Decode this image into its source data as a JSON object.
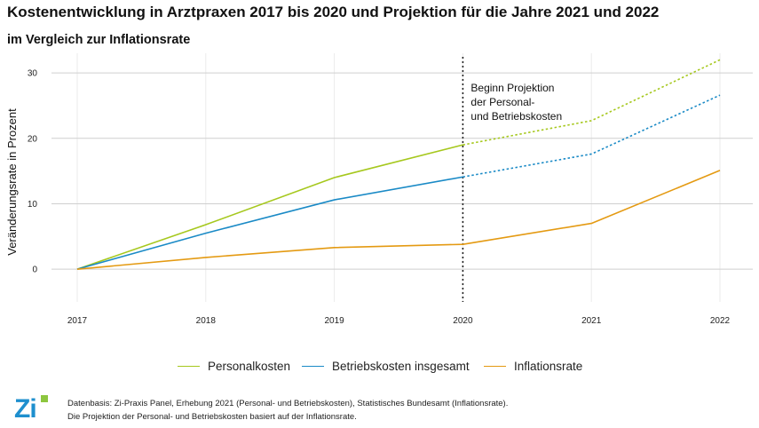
{
  "title": "Kostenentwicklung in Arztpraxen 2017 bis 2020 und Projektion für die Jahre 2021 und 2022",
  "subtitle": "im Vergleich zur Inflationsrate",
  "chart_data": {
    "type": "line",
    "x": [
      "2017",
      "2018",
      "2019",
      "2020",
      "2021",
      "2022"
    ],
    "ylabel": "Veränderungsrate in Prozent",
    "xlabel": "",
    "ylim": [
      -5,
      33
    ],
    "yticks": [
      0,
      10,
      20,
      30
    ],
    "grid": true,
    "legend_position": "bottom",
    "projection_start": "2020",
    "annotation": [
      "Beginn Projektion",
      "der Personal-",
      "und Betriebskosten"
    ],
    "series": [
      {
        "name": "Personalkosten",
        "color": "#a6c81e",
        "values": [
          0,
          6.8,
          14.0,
          19.0,
          22.7,
          32.0
        ],
        "projected_from_index": 3
      },
      {
        "name": "Betriebskosten insgesamt",
        "color": "#1a8ac6",
        "values": [
          0,
          5.5,
          10.6,
          14.1,
          17.6,
          26.6
        ],
        "projected_from_index": 3
      },
      {
        "name": "Inflationsrate",
        "color": "#e49a12",
        "values": [
          0,
          1.8,
          3.3,
          3.8,
          7.0,
          15.1
        ],
        "projected_from_index": null
      }
    ]
  },
  "footnote": {
    "line1": "Datenbasis: Zi-Praxis Panel, Erhebung 2021 (Personal- und Betriebskosten), Statistisches Bundesamt (Inflationsrate).",
    "line2": "Die Projektion der Personal- und Betriebskosten basiert auf der Inflationsrate."
  },
  "logo": {
    "text": "Zi",
    "icon": "zi-logo-icon"
  }
}
